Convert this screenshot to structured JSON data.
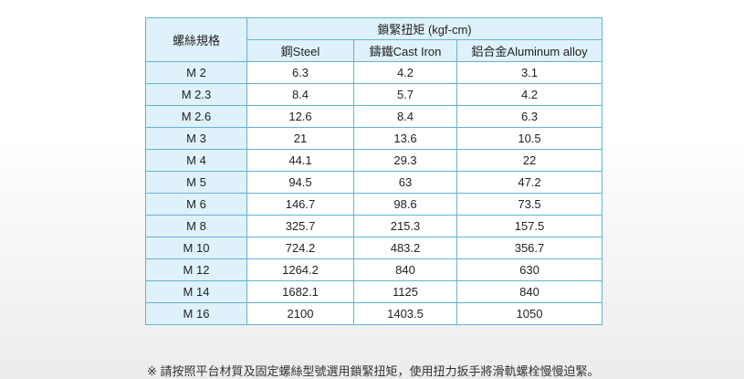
{
  "table": {
    "spec_header": "螺絲規格",
    "torque_header": "鎖緊扭矩 (kgf-cm)",
    "materials": [
      "鋼Steel",
      "鑄鐵Cast Iron",
      "鋁合金Aluminum alloy"
    ],
    "rows": [
      {
        "spec": "M 2",
        "steel": "6.3",
        "cast_iron": "4.2",
        "aluminum": "3.1"
      },
      {
        "spec": "M 2.3",
        "steel": "8.4",
        "cast_iron": "5.7",
        "aluminum": "4.2"
      },
      {
        "spec": "M 2.6",
        "steel": "12.6",
        "cast_iron": "8.4",
        "aluminum": "6.3"
      },
      {
        "spec": "M 3",
        "steel": "21",
        "cast_iron": "13.6",
        "aluminum": "10.5"
      },
      {
        "spec": "M 4",
        "steel": "44.1",
        "cast_iron": "29.3",
        "aluminum": "22"
      },
      {
        "spec": "M 5",
        "steel": "94.5",
        "cast_iron": "63",
        "aluminum": "47.2"
      },
      {
        "spec": "M 6",
        "steel": "146.7",
        "cast_iron": "98.6",
        "aluminum": "73.5"
      },
      {
        "spec": "M 8",
        "steel": "325.7",
        "cast_iron": "215.3",
        "aluminum": "157.5"
      },
      {
        "spec": "M 10",
        "steel": "724.2",
        "cast_iron": "483.2",
        "aluminum": "356.7"
      },
      {
        "spec": "M 12",
        "steel": "1264.2",
        "cast_iron": "840",
        "aluminum": "630"
      },
      {
        "spec": "M 14",
        "steel": "1682.1",
        "cast_iron": "1125",
        "aluminum": "840"
      },
      {
        "spec": "M 16",
        "steel": "2100",
        "cast_iron": "1403.5",
        "aluminum": "1050"
      }
    ]
  },
  "note": "※ 請按照平台材質及固定螺絲型號選用鎖緊扭矩，使用扭力扳手將滑軌螺栓慢慢迫緊。",
  "colors": {
    "border": "#5fb4d8",
    "header_bg": "#dff1fa"
  }
}
